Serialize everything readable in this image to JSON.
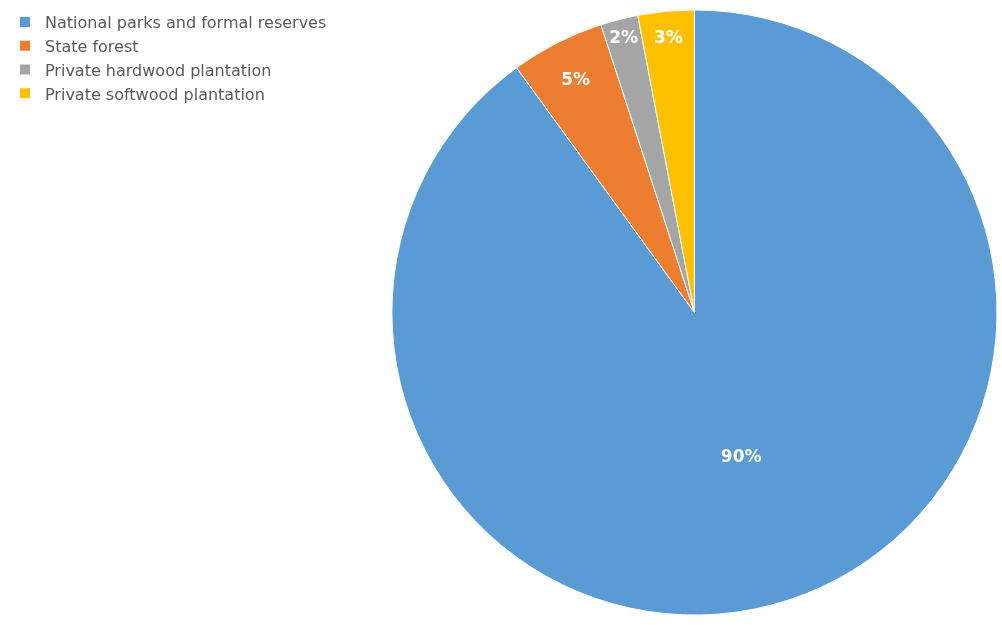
{
  "chart_data": {
    "type": "pie",
    "categories": [
      "National parks and formal reserves",
      "State forest",
      "Private hardwood plantation",
      "Private softwood plantation"
    ],
    "values": [
      90,
      5,
      2,
      3
    ],
    "colors": [
      "#5b9bd5",
      "#ed7d31",
      "#a5a5a5",
      "#ffc000"
    ],
    "value_labels": [
      "90%",
      "5%",
      "2%",
      "3%"
    ],
    "legend": "top left"
  }
}
